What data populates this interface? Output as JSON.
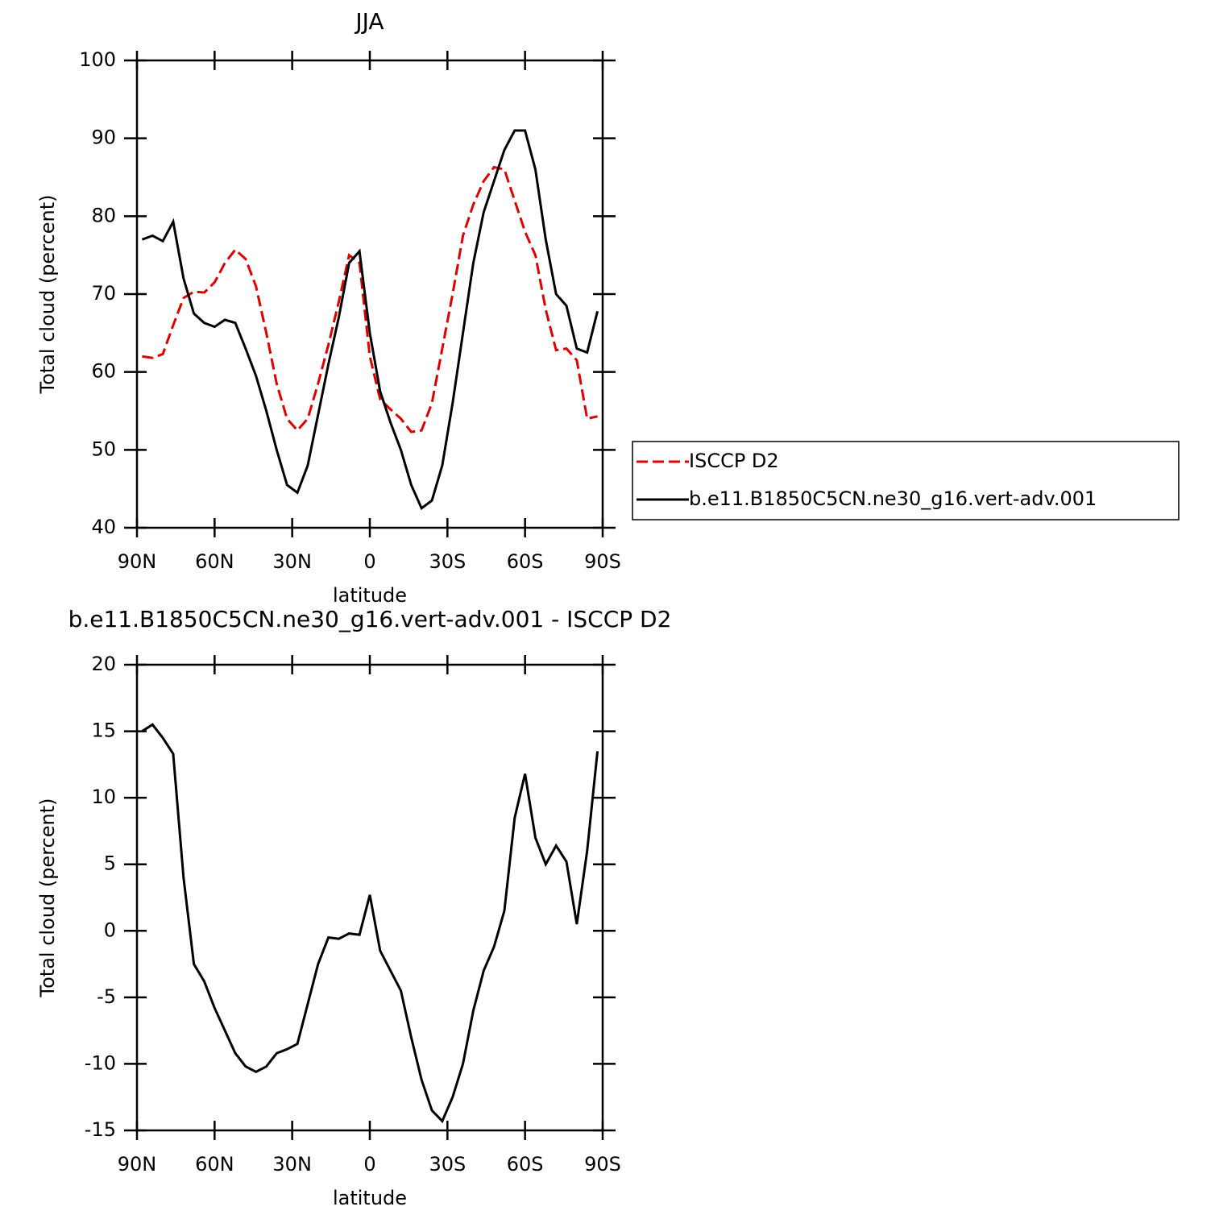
{
  "chart_data": [
    {
      "type": "line",
      "title": "JJA",
      "xlabel": "latitude",
      "ylabel": "Total cloud (percent)",
      "x": [
        88,
        84,
        80,
        76,
        72,
        68,
        64,
        60,
        56,
        52,
        48,
        44,
        40,
        36,
        32,
        28,
        24,
        20,
        16,
        12,
        8,
        4,
        0,
        -4,
        -8,
        -12,
        -16,
        -20,
        -24,
        -28,
        -32,
        -36,
        -40,
        -44,
        -48,
        -52,
        -56,
        -60,
        -64,
        -68,
        -72,
        -76,
        -80,
        -84,
        -88
      ],
      "series": [
        {
          "name": "ISCCP D2",
          "color": "#e00000",
          "dash": true,
          "values": [
            62.0,
            61.8,
            62.3,
            66,
            69.5,
            70.3,
            70.2,
            71.5,
            74,
            75.7,
            74.5,
            71,
            65,
            58.5,
            54,
            52.5,
            54,
            58.5,
            63.5,
            69,
            75,
            74,
            62,
            56.5,
            55.2,
            54,
            52.3,
            52.5,
            56,
            63,
            70,
            77.5,
            81.5,
            84.5,
            86.3,
            86,
            82,
            78,
            75,
            68,
            62.8,
            63,
            61.5,
            54,
            54.3
          ]
        },
        {
          "name": "b.e11.B1850C5CN.ne30_g16.vert-adv.001",
          "color": "#000000",
          "dash": false,
          "values": [
            77.0,
            77.5,
            76.8,
            79.3,
            72,
            67.5,
            66.3,
            65.8,
            66.7,
            66.3,
            63,
            59.5,
            55,
            50,
            45.5,
            44.5,
            48,
            54.5,
            61,
            67,
            74,
            75.5,
            65,
            57.5,
            53.5,
            50,
            45.5,
            42.5,
            43.5,
            48,
            56,
            65,
            74,
            80.5,
            84.5,
            88.5,
            91,
            91,
            86,
            77,
            70,
            68.5,
            63,
            62.5,
            67.8
          ]
        }
      ],
      "xlim": [
        90,
        -90
      ],
      "xticks": [
        {
          "value": 90,
          "label": "90N"
        },
        {
          "value": 60,
          "label": "60N"
        },
        {
          "value": 30,
          "label": "30N"
        },
        0,
        {
          "value": -30,
          "label": "30S"
        },
        {
          "value": -60,
          "label": "60S"
        },
        {
          "value": -90,
          "label": "90S"
        }
      ],
      "ylim": [
        40,
        100
      ],
      "yticks": [
        40,
        50,
        60,
        70,
        80,
        90,
        100
      ],
      "legend": "right"
    },
    {
      "type": "line",
      "title": "b.e11.B1850C5CN.ne30_g16.vert-adv.001 - ISCCP D2",
      "xlabel": "latitude",
      "ylabel": "Total cloud (percent)",
      "x": [
        88,
        84,
        80,
        76,
        72,
        68,
        64,
        60,
        56,
        52,
        48,
        44,
        40,
        36,
        32,
        28,
        24,
        20,
        16,
        12,
        8,
        4,
        0,
        -4,
        -8,
        -12,
        -16,
        -20,
        -24,
        -28,
        -32,
        -36,
        -40,
        -44,
        -48,
        -52,
        -56,
        -60,
        -64,
        -68,
        -72,
        -76,
        -80,
        -84,
        -88
      ],
      "series": [
        {
          "color": "#000000",
          "dash": false,
          "values": [
            15,
            15.5,
            14.5,
            13.3,
            4,
            -2.5,
            -3.8,
            -5.8,
            -7.5,
            -9.2,
            -10.2,
            -10.6,
            -10.2,
            -9.2,
            -8.9,
            -8.5,
            -5.5,
            -2.5,
            -0.5,
            -0.6,
            -0.2,
            -0.3,
            2.7,
            -1.5,
            -3,
            -4.5,
            -8,
            -11.2,
            -13.5,
            -14.3,
            -12.5,
            -10,
            -6,
            -3,
            -1.2,
            1.5,
            8.5,
            11.8,
            7,
            5,
            6.4,
            5.2,
            0.5,
            6,
            13.5
          ]
        }
      ],
      "xlim": [
        90,
        -90
      ],
      "xticks": [
        {
          "value": 90,
          "label": "90N"
        },
        {
          "value": 60,
          "label": "60N"
        },
        {
          "value": 30,
          "label": "30N"
        },
        0,
        {
          "value": -30,
          "label": "30S"
        },
        {
          "value": -60,
          "label": "60S"
        },
        {
          "value": -90,
          "label": "90S"
        }
      ],
      "ylim": [
        -15,
        20
      ],
      "yticks": [
        -15,
        -10,
        -5,
        0,
        5,
        10,
        15,
        20
      ]
    }
  ]
}
